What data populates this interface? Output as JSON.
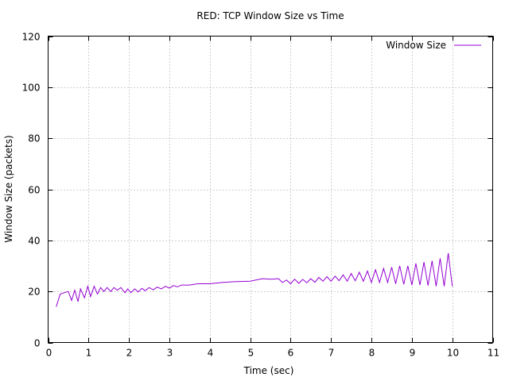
{
  "chart_data": {
    "type": "line",
    "title": "RED: TCP Window Size vs Time",
    "xlabel": "Time (sec)",
    "ylabel": "Window Size (packets)",
    "xlim": [
      0,
      11
    ],
    "ylim": [
      0,
      120
    ],
    "xticks": [
      "0",
      "1",
      "2",
      "3",
      "4",
      "5",
      "6",
      "7",
      "8",
      "9",
      "10",
      "11"
    ],
    "yticks": [
      "0",
      "20",
      "40",
      "60",
      "80",
      "100",
      "120"
    ],
    "grid": true,
    "legend_position": "top-right",
    "series": [
      {
        "name": "Window Size",
        "color": "#9400d3",
        "x": [
          0.2,
          0.3,
          0.4,
          0.5,
          0.58,
          0.66,
          0.74,
          0.8,
          0.9,
          0.98,
          1.05,
          1.14,
          1.22,
          1.3,
          1.38,
          1.46,
          1.55,
          1.63,
          1.71,
          1.8,
          1.9,
          1.97,
          2.05,
          2.14,
          2.23,
          2.32,
          2.4,
          2.5,
          2.6,
          2.7,
          2.8,
          2.9,
          3.0,
          3.1,
          3.2,
          3.3,
          3.5,
          3.7,
          4.0,
          4.3,
          4.6,
          5.0,
          5.3,
          5.5,
          5.7,
          5.8,
          5.9,
          6.0,
          6.1,
          6.2,
          6.3,
          6.4,
          6.5,
          6.6,
          6.7,
          6.8,
          6.9,
          7.0,
          7.1,
          7.2,
          7.3,
          7.4,
          7.5,
          7.6,
          7.7,
          7.8,
          7.9,
          8.0,
          8.1,
          8.2,
          8.3,
          8.4,
          8.5,
          8.6,
          8.7,
          8.8,
          8.9,
          9.0,
          9.1,
          9.2,
          9.3,
          9.4,
          9.5,
          9.6,
          9.7,
          9.8,
          9.9,
          10.0
        ],
        "values": [
          14,
          19,
          19.5,
          20,
          16.5,
          20.5,
          16,
          21,
          17.5,
          22,
          18,
          22,
          19,
          21.5,
          20,
          21.5,
          20,
          21.5,
          20.5,
          21.5,
          19.5,
          21,
          19.5,
          21,
          19.8,
          21.2,
          20.3,
          21.5,
          20.6,
          21.7,
          21,
          22,
          21.3,
          22.3,
          21.8,
          22.5,
          22.5,
          23,
          23,
          23.5,
          23.8,
          24,
          25,
          24.8,
          25,
          23.5,
          24.5,
          23,
          24.8,
          23.2,
          24.7,
          23.4,
          25,
          23.6,
          25.5,
          24,
          25.8,
          24,
          26,
          24.2,
          26.5,
          24,
          27,
          24.2,
          27.5,
          24,
          28,
          23.5,
          28.5,
          23.5,
          29,
          23.5,
          29.5,
          23,
          30,
          22.8,
          30,
          22.5,
          31,
          22.5,
          31.5,
          22.3,
          32,
          22,
          33,
          22,
          35,
          22
        ]
      }
    ]
  }
}
